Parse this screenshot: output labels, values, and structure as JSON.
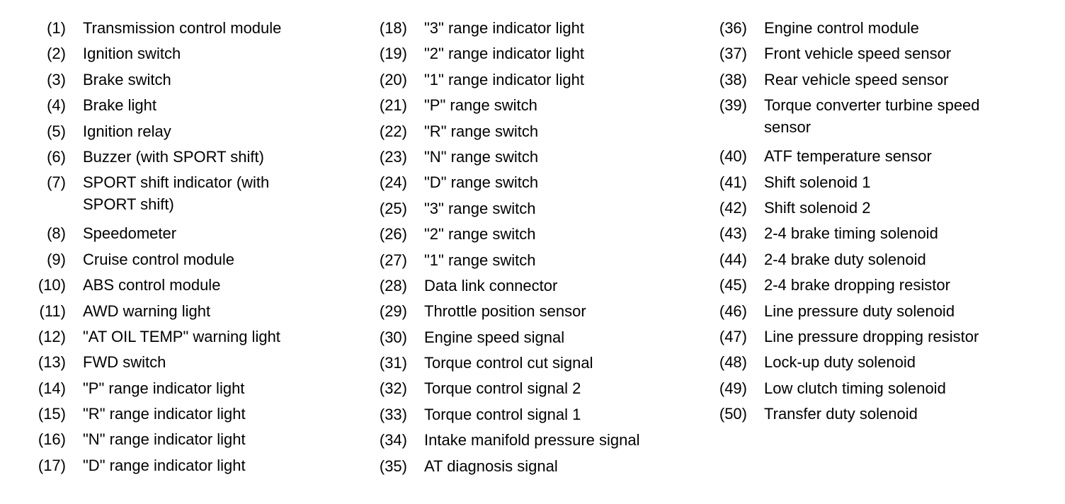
{
  "columns": [
    [
      {
        "num": "(1)",
        "text": [
          "Transmission control module"
        ]
      },
      {
        "num": "(2)",
        "text": [
          "Ignition switch"
        ]
      },
      {
        "num": "(3)",
        "text": [
          "Brake switch"
        ]
      },
      {
        "num": "(4)",
        "text": [
          "Brake light"
        ]
      },
      {
        "num": "(5)",
        "text": [
          "Ignition relay"
        ]
      },
      {
        "num": "(6)",
        "text": [
          "Buzzer (with SPORT shift)"
        ]
      },
      {
        "num": "(7)",
        "text": [
          "SPORT shift indicator (with",
          "SPORT shift)"
        ]
      },
      {
        "num": "(8)",
        "text": [
          "Speedometer"
        ]
      },
      {
        "num": "(9)",
        "text": [
          "Cruise control module"
        ]
      },
      {
        "num": "(10)",
        "text": [
          "ABS control module"
        ]
      },
      {
        "num": "(11)",
        "text": [
          "AWD warning light"
        ]
      },
      {
        "num": "(12)",
        "text": [
          "\"AT OIL TEMP\" warning light"
        ]
      },
      {
        "num": "(13)",
        "text": [
          "FWD switch"
        ]
      },
      {
        "num": "(14)",
        "text": [
          "\"P\" range indicator light"
        ]
      },
      {
        "num": "(15)",
        "text": [
          "\"R\" range indicator light"
        ]
      },
      {
        "num": "(16)",
        "text": [
          "\"N\" range indicator light"
        ]
      },
      {
        "num": "(17)",
        "text": [
          "\"D\" range indicator light"
        ]
      }
    ],
    [
      {
        "num": "(18)",
        "text": [
          "\"3\" range indicator light"
        ]
      },
      {
        "num": "(19)",
        "text": [
          "\"2\" range indicator light"
        ]
      },
      {
        "num": "(20)",
        "text": [
          "\"1\" range indicator light"
        ]
      },
      {
        "num": "(21)",
        "text": [
          "\"P\" range switch"
        ]
      },
      {
        "num": "(22)",
        "text": [
          "\"R\" range switch"
        ]
      },
      {
        "num": "(23)",
        "text": [
          "\"N\" range switch"
        ]
      },
      {
        "num": "(24)",
        "text": [
          "\"D\" range switch"
        ]
      },
      {
        "num": "(25)",
        "text": [
          "\"3\" range switch"
        ]
      },
      {
        "num": "(26)",
        "text": [
          "\"2\" range switch"
        ]
      },
      {
        "num": "(27)",
        "text": [
          "\"1\" range switch"
        ]
      },
      {
        "num": "(28)",
        "text": [
          "Data link connector"
        ]
      },
      {
        "num": "(29)",
        "text": [
          "Throttle position sensor"
        ]
      },
      {
        "num": "(30)",
        "text": [
          "Engine speed signal"
        ]
      },
      {
        "num": "(31)",
        "text": [
          "Torque control cut signal"
        ]
      },
      {
        "num": "(32)",
        "text": [
          "Torque control signal 2"
        ]
      },
      {
        "num": "(33)",
        "text": [
          "Torque control signal 1"
        ]
      },
      {
        "num": "(34)",
        "text": [
          "Intake manifold pressure signal"
        ]
      },
      {
        "num": "(35)",
        "text": [
          "AT diagnosis signal"
        ]
      }
    ],
    [
      {
        "num": "(36)",
        "text": [
          "Engine control module"
        ]
      },
      {
        "num": "(37)",
        "text": [
          "Front vehicle speed sensor"
        ]
      },
      {
        "num": "(38)",
        "text": [
          "Rear vehicle speed sensor"
        ]
      },
      {
        "num": "(39)",
        "text": [
          "Torque converter turbine speed",
          "sensor"
        ]
      },
      {
        "num": "(40)",
        "text": [
          "ATF temperature sensor"
        ]
      },
      {
        "num": "(41)",
        "text": [
          "Shift solenoid 1"
        ]
      },
      {
        "num": "(42)",
        "text": [
          "Shift solenoid 2"
        ]
      },
      {
        "num": "(43)",
        "text": [
          "2-4 brake timing solenoid"
        ]
      },
      {
        "num": "(44)",
        "text": [
          "2-4 brake duty solenoid"
        ]
      },
      {
        "num": "(45)",
        "text": [
          "2-4 brake dropping resistor"
        ]
      },
      {
        "num": "(46)",
        "text": [
          "Line pressure duty solenoid"
        ]
      },
      {
        "num": "(47)",
        "text": [
          "Line pressure dropping resistor"
        ]
      },
      {
        "num": "(48)",
        "text": [
          "Lock-up duty solenoid"
        ]
      },
      {
        "num": "(49)",
        "text": [
          "Low clutch timing solenoid"
        ]
      },
      {
        "num": "(50)",
        "text": [
          "Transfer duty solenoid"
        ]
      }
    ]
  ]
}
